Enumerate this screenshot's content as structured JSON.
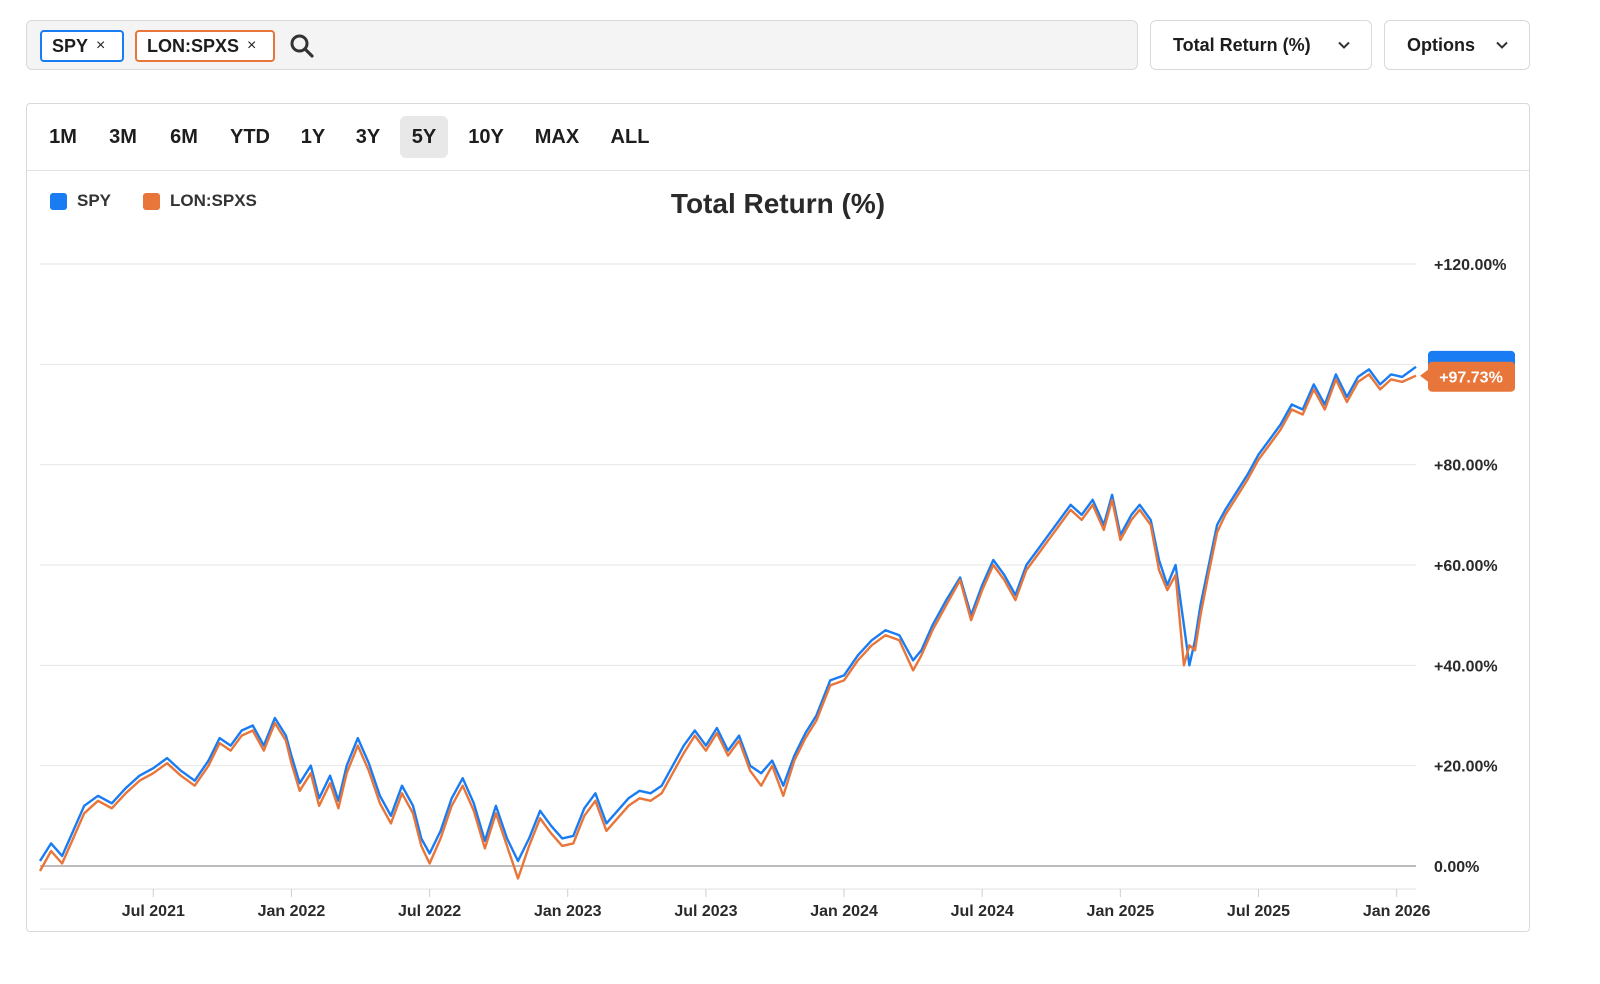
{
  "search": {
    "tickers": [
      {
        "symbol": "SPY",
        "color": "#1a7cf2"
      },
      {
        "symbol": "LON:SPXS",
        "color": "#e8763a"
      }
    ],
    "remove_glyph": "×",
    "search_icon": "magnifier-icon"
  },
  "metric_dropdown": {
    "label": "Total Return (%)"
  },
  "options_dropdown": {
    "label": "Options"
  },
  "ranges": {
    "items": [
      "1M",
      "3M",
      "6M",
      "YTD",
      "1Y",
      "3Y",
      "5Y",
      "10Y",
      "MAX",
      "ALL"
    ],
    "active": "5Y"
  },
  "chart_data": {
    "type": "line",
    "title": "Total Return (%)",
    "legend": [
      "SPY",
      "LON:SPXS"
    ],
    "legend_position": "top-left",
    "ylim": [
      -4,
      124
    ],
    "y_ticks": [
      "+120.00%",
      "+80.00%",
      "+60.00%",
      "+40.00%",
      "+20.00%",
      "0.00%"
    ],
    "y_tick_values": [
      120,
      80,
      60,
      40,
      20,
      0
    ],
    "x_ticks": [
      "Jul 2021",
      "Jan 2022",
      "Jul 2022",
      "Jan 2023",
      "Jul 2023",
      "Jan 2024",
      "Jul 2024",
      "Jan 2025",
      "Jul 2025",
      "Jan 2026"
    ],
    "x_tick_values": [
      2021.5,
      2022.0,
      2022.5,
      2023.0,
      2023.5,
      2024.0,
      2024.5,
      2025.0,
      2025.5,
      2026.0
    ],
    "xlim": [
      2021.09,
      2026.07
    ],
    "last_value_label": "+97.73%",
    "series": [
      {
        "name": "SPY",
        "color": "#1a7cf2",
        "x": [
          2021.09,
          2021.13,
          2021.17,
          2021.21,
          2021.25,
          2021.3,
          2021.35,
          2021.4,
          2021.45,
          2021.5,
          2021.55,
          2021.6,
          2021.65,
          2021.7,
          2021.74,
          2021.78,
          2021.82,
          2021.86,
          2021.9,
          2021.94,
          2021.98,
          2022.0,
          2022.03,
          2022.07,
          2022.1,
          2022.14,
          2022.17,
          2022.2,
          2022.24,
          2022.28,
          2022.32,
          2022.36,
          2022.4,
          2022.44,
          2022.47,
          2022.5,
          2022.54,
          2022.58,
          2022.62,
          2022.66,
          2022.7,
          2022.74,
          2022.78,
          2022.82,
          2022.86,
          2022.9,
          2022.94,
          2022.98,
          2023.02,
          2023.06,
          2023.1,
          2023.14,
          2023.18,
          2023.22,
          2023.26,
          2023.3,
          2023.34,
          2023.38,
          2023.42,
          2023.46,
          2023.5,
          2023.54,
          2023.58,
          2023.62,
          2023.66,
          2023.7,
          2023.74,
          2023.78,
          2023.82,
          2023.86,
          2023.9,
          2023.95,
          2024.0,
          2024.05,
          2024.1,
          2024.15,
          2024.2,
          2024.25,
          2024.28,
          2024.32,
          2024.37,
          2024.42,
          2024.46,
          2024.5,
          2024.54,
          2024.58,
          2024.62,
          2024.66,
          2024.7,
          2024.74,
          2024.78,
          2024.82,
          2024.86,
          2024.9,
          2024.94,
          2024.97,
          2025.0,
          2025.04,
          2025.07,
          2025.11,
          2025.14,
          2025.17,
          2025.2,
          2025.23,
          2025.25,
          2025.27,
          2025.29,
          2025.32,
          2025.35,
          2025.38,
          2025.42,
          2025.46,
          2025.5,
          2025.54,
          2025.58,
          2025.62,
          2025.66,
          2025.7,
          2025.74,
          2025.78,
          2025.82,
          2025.86,
          2025.9,
          2025.94,
          2025.98,
          2026.02,
          2026.07
        ],
        "y": [
          1.0,
          4.5,
          2.0,
          7.0,
          12.0,
          14.0,
          12.5,
          15.5,
          18.0,
          19.5,
          21.5,
          19.0,
          17.0,
          21.0,
          25.5,
          24.0,
          27.0,
          28.0,
          24.0,
          29.5,
          26.0,
          22.0,
          16.5,
          20.0,
          13.5,
          18.0,
          13.0,
          20.0,
          25.5,
          20.5,
          14.0,
          10.0,
          16.0,
          12.0,
          5.5,
          2.5,
          7.0,
          13.5,
          17.5,
          12.5,
          5.0,
          12.0,
          5.5,
          1.0,
          5.5,
          11.0,
          8.0,
          5.5,
          6.0,
          11.5,
          14.5,
          8.5,
          11.0,
          13.5,
          15.0,
          14.5,
          16.0,
          20.0,
          24.0,
          27.0,
          24.0,
          27.5,
          23.0,
          26.0,
          20.0,
          18.5,
          21.0,
          16.0,
          22.0,
          26.5,
          30.0,
          37.0,
          38.0,
          42.0,
          45.0,
          47.0,
          46.0,
          41.0,
          43.0,
          48.0,
          53.0,
          57.5,
          50.0,
          56.0,
          61.0,
          58.0,
          54.0,
          60.0,
          63.0,
          66.0,
          69.0,
          72.0,
          70.0,
          73.0,
          68.0,
          74.0,
          66.0,
          70.0,
          72.0,
          69.0,
          61.0,
          56.0,
          60.0,
          48.0,
          40.0,
          45.0,
          52.0,
          60.0,
          68.0,
          71.0,
          74.5,
          78.0,
          82.0,
          85.0,
          88.0,
          92.0,
          91.0,
          96.0,
          92.0,
          98.0,
          93.5,
          97.5,
          99.0,
          96.0,
          98.0,
          97.5,
          99.5
        ]
      },
      {
        "name": "LON:SPXS",
        "color": "#e8763a",
        "x": [
          2021.09,
          2021.13,
          2021.17,
          2021.21,
          2021.25,
          2021.3,
          2021.35,
          2021.4,
          2021.45,
          2021.5,
          2021.55,
          2021.6,
          2021.65,
          2021.7,
          2021.74,
          2021.78,
          2021.82,
          2021.86,
          2021.9,
          2021.94,
          2021.98,
          2022.0,
          2022.03,
          2022.07,
          2022.1,
          2022.14,
          2022.17,
          2022.2,
          2022.24,
          2022.28,
          2022.32,
          2022.36,
          2022.4,
          2022.44,
          2022.47,
          2022.5,
          2022.54,
          2022.58,
          2022.62,
          2022.66,
          2022.7,
          2022.74,
          2022.78,
          2022.82,
          2022.86,
          2022.9,
          2022.94,
          2022.98,
          2023.02,
          2023.06,
          2023.1,
          2023.14,
          2023.18,
          2023.22,
          2023.26,
          2023.3,
          2023.34,
          2023.38,
          2023.42,
          2023.46,
          2023.5,
          2023.54,
          2023.58,
          2023.62,
          2023.66,
          2023.7,
          2023.74,
          2023.78,
          2023.82,
          2023.86,
          2023.9,
          2023.95,
          2024.0,
          2024.05,
          2024.1,
          2024.15,
          2024.2,
          2024.25,
          2024.28,
          2024.32,
          2024.37,
          2024.42,
          2024.46,
          2024.5,
          2024.54,
          2024.58,
          2024.62,
          2024.66,
          2024.7,
          2024.74,
          2024.78,
          2024.82,
          2024.86,
          2024.9,
          2024.94,
          2024.97,
          2025.0,
          2025.04,
          2025.07,
          2025.11,
          2025.14,
          2025.17,
          2025.2,
          2025.23,
          2025.25,
          2025.27,
          2025.29,
          2025.32,
          2025.35,
          2025.38,
          2025.42,
          2025.46,
          2025.5,
          2025.54,
          2025.58,
          2025.62,
          2025.66,
          2025.7,
          2025.74,
          2025.78,
          2025.82,
          2025.86,
          2025.9,
          2025.94,
          2025.98,
          2026.02,
          2026.07
        ],
        "y": [
          -1.0,
          3.0,
          0.5,
          5.5,
          10.5,
          13.0,
          11.5,
          14.5,
          17.0,
          18.5,
          20.5,
          18.0,
          16.0,
          20.0,
          24.5,
          23.0,
          26.0,
          27.0,
          23.0,
          28.5,
          25.0,
          20.5,
          15.0,
          18.5,
          12.0,
          16.5,
          11.5,
          18.5,
          24.0,
          19.0,
          12.5,
          8.5,
          14.5,
          10.5,
          4.0,
          0.5,
          5.5,
          12.0,
          16.0,
          11.0,
          3.5,
          10.5,
          4.0,
          -2.5,
          4.0,
          9.5,
          6.5,
          4.0,
          4.5,
          10.0,
          13.0,
          7.0,
          9.5,
          12.0,
          13.5,
          13.0,
          14.5,
          18.5,
          22.5,
          26.0,
          23.0,
          26.5,
          22.0,
          25.0,
          19.0,
          16.0,
          20.0,
          14.0,
          21.0,
          25.5,
          29.0,
          36.0,
          37.0,
          41.0,
          44.0,
          46.0,
          45.0,
          39.0,
          42.0,
          47.0,
          52.0,
          57.0,
          49.0,
          55.0,
          60.0,
          57.0,
          53.0,
          59.0,
          62.0,
          65.0,
          68.0,
          71.0,
          69.0,
          72.0,
          67.0,
          73.0,
          65.0,
          69.0,
          71.0,
          68.0,
          59.0,
          55.0,
          58.0,
          40.0,
          44.0,
          43.0,
          50.0,
          58.5,
          66.5,
          70.0,
          73.5,
          77.0,
          81.0,
          84.0,
          87.0,
          91.0,
          90.0,
          95.0,
          91.0,
          97.0,
          92.5,
          96.5,
          98.0,
          95.0,
          97.0,
          96.5,
          97.73
        ]
      }
    ]
  }
}
